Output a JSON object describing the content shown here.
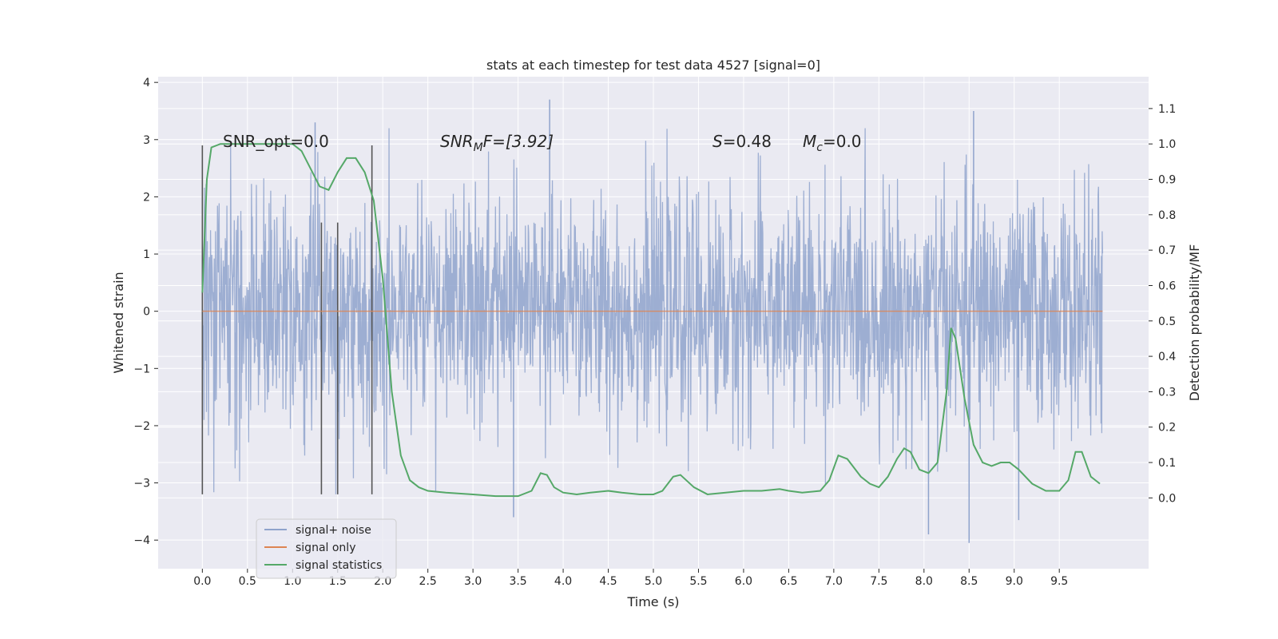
{
  "chart_data": {
    "type": "line",
    "title": "stats at each timestep for test data 4527 [signal=0]",
    "xlabel": "Time (s)",
    "ylabel_left": "Whitened strain",
    "ylabel_right": "Detection probability/MF",
    "xlim": [
      -0.49,
      10.49
    ],
    "ylim_left": [
      -4.5,
      4.1
    ],
    "ylim_right": [
      -0.2,
      1.19
    ],
    "x_ticks": [
      0.0,
      0.5,
      1.0,
      1.5,
      2.0,
      2.5,
      3.0,
      3.5,
      4.0,
      4.5,
      5.0,
      5.5,
      6.0,
      6.5,
      7.0,
      7.5,
      8.0,
      8.5,
      9.0,
      9.5
    ],
    "x_tick_labels": [
      "0.0",
      "0.5",
      "1.0",
      "1.5",
      "2.0",
      "2.5",
      "3.0",
      "3.5",
      "4.0",
      "4.5",
      "5.0",
      "5.5",
      "6.0",
      "6.5",
      "7.0",
      "7.5",
      "8.0",
      "8.5",
      "9.0",
      "9.5"
    ],
    "y_left_ticks": [
      -4,
      -3,
      -2,
      -1,
      0,
      1,
      2,
      3,
      4
    ],
    "y_left_tick_labels": [
      "−4",
      "−3",
      "−2",
      "−1",
      "0",
      "1",
      "2",
      "3",
      "4"
    ],
    "y_right_ticks": [
      0.0,
      0.1,
      0.2,
      0.3,
      0.4,
      0.5,
      0.6,
      0.7,
      0.8,
      0.9,
      1.0,
      1.1
    ],
    "y_right_tick_labels": [
      "0.0",
      "0.1",
      "0.2",
      "0.3",
      "0.4",
      "0.5",
      "0.6",
      "0.7",
      "0.8",
      "0.9",
      "1.0",
      "1.1"
    ],
    "grid": true,
    "legend_position": "lower-left",
    "annotations": {
      "snr_opt": "SNR_opt=0.0",
      "snr_mf_base": "SNR",
      "snr_mf_sub": "M",
      "snr_mf_rest": "F=[3.92]",
      "s_base": "S",
      "s_rest": "=0.48",
      "mc_base": "M",
      "mc_sub": "c",
      "mc_rest": "=0.0"
    },
    "series": [
      {
        "name": "signal+ noise",
        "color": "#8fa3cc",
        "t_start": 0.0,
        "t_end": 9.98,
        "typical_amplitude": 1.0,
        "extreme_peaks": [
          {
            "x": 3.45,
            "y": -3.6
          },
          {
            "x": 3.85,
            "y": 3.7
          },
          {
            "x": 8.5,
            "y": -4.05
          },
          {
            "x": 8.55,
            "y": 3.5
          },
          {
            "x": 1.25,
            "y": 3.3
          },
          {
            "x": 8.05,
            "y": -3.9
          },
          {
            "x": 9.05,
            "y": -3.65
          }
        ]
      },
      {
        "name": "signal only",
        "color": "#dd8452",
        "x": [
          0.0,
          9.98
        ],
        "y": [
          0.0,
          0.0
        ]
      },
      {
        "name": "signal statistics",
        "color": "#55a868",
        "x": [
          0.0,
          0.05,
          0.1,
          0.2,
          0.3,
          0.5,
          0.7,
          0.9,
          1.0,
          1.1,
          1.2,
          1.3,
          1.4,
          1.5,
          1.6,
          1.7,
          1.8,
          1.9,
          2.0,
          2.1,
          2.2,
          2.3,
          2.4,
          2.5,
          2.7,
          3.0,
          3.25,
          3.5,
          3.65,
          3.75,
          3.82,
          3.9,
          4.0,
          4.15,
          4.3,
          4.5,
          4.65,
          4.85,
          5.0,
          5.1,
          5.22,
          5.3,
          5.45,
          5.6,
          5.8,
          6.0,
          6.2,
          6.4,
          6.5,
          6.65,
          6.85,
          6.95,
          7.05,
          7.15,
          7.3,
          7.4,
          7.5,
          7.6,
          7.7,
          7.78,
          7.85,
          7.95,
          8.05,
          8.15,
          8.25,
          8.3,
          8.35,
          8.45,
          8.55,
          8.65,
          8.75,
          8.85,
          8.95,
          9.05,
          9.2,
          9.35,
          9.5,
          9.6,
          9.68,
          9.75,
          9.85,
          9.95
        ],
        "y": [
          0.58,
          0.9,
          0.99,
          1.0,
          1.0,
          1.0,
          1.0,
          1.0,
          1.0,
          0.98,
          0.93,
          0.88,
          0.87,
          0.92,
          0.96,
          0.96,
          0.92,
          0.84,
          0.62,
          0.3,
          0.12,
          0.05,
          0.03,
          0.02,
          0.015,
          0.01,
          0.005,
          0.005,
          0.02,
          0.07,
          0.065,
          0.03,
          0.015,
          0.01,
          0.015,
          0.02,
          0.015,
          0.01,
          0.01,
          0.02,
          0.06,
          0.065,
          0.03,
          0.01,
          0.015,
          0.02,
          0.02,
          0.025,
          0.02,
          0.015,
          0.02,
          0.05,
          0.12,
          0.11,
          0.06,
          0.04,
          0.03,
          0.06,
          0.11,
          0.14,
          0.13,
          0.08,
          0.07,
          0.1,
          0.3,
          0.48,
          0.45,
          0.28,
          0.15,
          0.1,
          0.09,
          0.1,
          0.1,
          0.08,
          0.04,
          0.02,
          0.02,
          0.05,
          0.13,
          0.13,
          0.06,
          0.04
        ]
      }
    ],
    "vertical_markers": [
      {
        "x": 0.0,
        "y_top": 2.9,
        "y_bottom": -3.2
      },
      {
        "x": 1.32,
        "y_top": 1.55,
        "y_bottom": -3.2
      },
      {
        "x": 1.5,
        "y_top": 1.55,
        "y_bottom": -3.2
      },
      {
        "x": 1.88,
        "y_top": 2.9,
        "y_bottom": -3.2
      }
    ]
  }
}
